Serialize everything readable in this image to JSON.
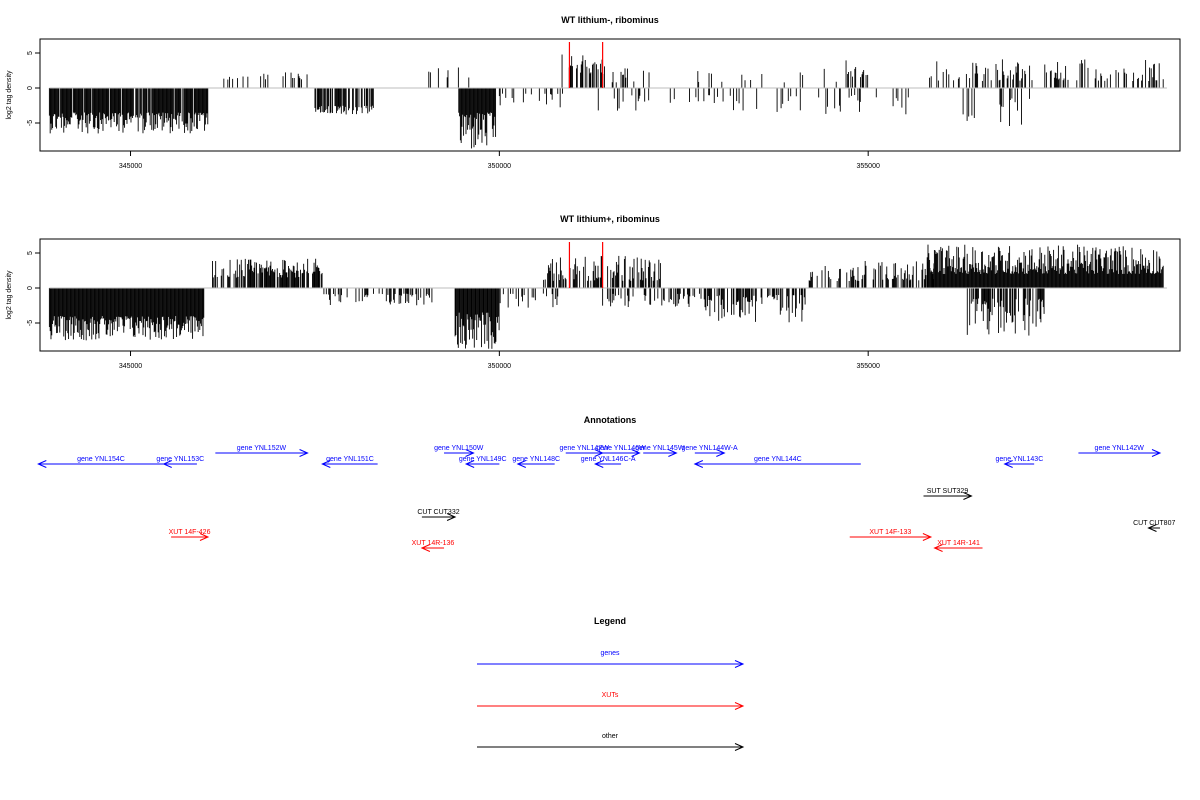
{
  "colors": {
    "gene": "#0000ff",
    "xut": "#ff0000",
    "other": "#000000",
    "marker": "#ff0000",
    "baseline": "#bebebe"
  },
  "chart_data": [
    {
      "type": "bar",
      "title": "WT lithium-, ribominus",
      "ylabel": "log2 tag density",
      "xlim": [
        343800,
        359200
      ],
      "ylim": [
        -9,
        7
      ],
      "x_ticks": [
        345000,
        350000,
        355000
      ],
      "x_tick_labels": [
        "345000",
        "350000",
        "355000"
      ],
      "y_ticks": [
        -5,
        0,
        5
      ],
      "y_tick_labels": [
        "-5",
        "0",
        "5"
      ],
      "marker_x": [
        350950,
        351400
      ],
      "segments": [
        {
          "from": 343900,
          "to": 346050,
          "sign": -1,
          "min": 3.5,
          "max": 6.5,
          "density": 0.9
        },
        {
          "from": 346200,
          "to": 347400,
          "sign": 1,
          "min": 1.2,
          "max": 2.3,
          "density": 0.15
        },
        {
          "from": 347500,
          "to": 348300,
          "sign": -1,
          "min": 2.5,
          "max": 3.8,
          "density": 0.7
        },
        {
          "from": 349000,
          "to": 349600,
          "sign": 1,
          "min": 1.5,
          "max": 3.0,
          "density": 0.15
        },
        {
          "from": 349450,
          "to": 349950,
          "sign": -1,
          "min": 3.5,
          "max": 9.2,
          "density": 1.0
        },
        {
          "from": 350000,
          "to": 350900,
          "sign": -1,
          "min": 0.8,
          "max": 3.2,
          "density": 0.2
        },
        {
          "from": 350850,
          "to": 351450,
          "sign": 1,
          "min": 2.0,
          "max": 4.8,
          "density": 0.55
        },
        {
          "from": 351200,
          "to": 353500,
          "sign": -1,
          "min": 1.0,
          "max": 3.5,
          "density": 0.12
        },
        {
          "from": 351400,
          "to": 354600,
          "sign": 1,
          "min": 0.8,
          "max": 3.0,
          "density": 0.08
        },
        {
          "from": 353700,
          "to": 355600,
          "sign": -1,
          "min": 1.0,
          "max": 4.0,
          "density": 0.12
        },
        {
          "from": 354700,
          "to": 355000,
          "sign": 1,
          "min": 1.5,
          "max": 4.0,
          "density": 0.3
        },
        {
          "from": 355800,
          "to": 359000,
          "sign": 1,
          "min": 1.0,
          "max": 4.2,
          "density": 0.35
        },
        {
          "from": 356200,
          "to": 357300,
          "sign": -1,
          "min": 1.5,
          "max": 5.5,
          "density": 0.12
        }
      ]
    },
    {
      "type": "bar",
      "title": "WT lithium+, ribominus",
      "ylabel": "log2 tag density",
      "xlim": [
        343800,
        359200
      ],
      "ylim": [
        -9,
        7
      ],
      "x_ticks": [
        345000,
        350000,
        355000
      ],
      "x_tick_labels": [
        "345000",
        "350000",
        "355000"
      ],
      "y_ticks": [
        -5,
        0,
        5
      ],
      "y_tick_labels": [
        "-5",
        "0",
        "5"
      ],
      "marker_x": [
        350950,
        351400
      ],
      "segments": [
        {
          "from": 343900,
          "to": 346000,
          "sign": -1,
          "min": 4.0,
          "max": 7.5,
          "density": 1.0
        },
        {
          "from": 346100,
          "to": 347600,
          "sign": 1,
          "min": 1.5,
          "max": 4.2,
          "density": 0.7
        },
        {
          "from": 347600,
          "to": 349100,
          "sign": -1,
          "min": 0.8,
          "max": 2.5,
          "density": 0.35
        },
        {
          "from": 349400,
          "to": 350000,
          "sign": -1,
          "min": 3.5,
          "max": 9.0,
          "density": 1.0
        },
        {
          "from": 350000,
          "to": 350900,
          "sign": -1,
          "min": 0.8,
          "max": 3.0,
          "density": 0.3
        },
        {
          "from": 350600,
          "to": 352200,
          "sign": 1,
          "min": 1.0,
          "max": 4.6,
          "density": 0.55
        },
        {
          "from": 351400,
          "to": 352800,
          "sign": -1,
          "min": 0.8,
          "max": 2.8,
          "density": 0.35
        },
        {
          "from": 352800,
          "to": 354200,
          "sign": -1,
          "min": 1.0,
          "max": 5.0,
          "density": 0.5
        },
        {
          "from": 354200,
          "to": 355900,
          "sign": 1,
          "min": 1.0,
          "max": 4.0,
          "density": 0.45
        },
        {
          "from": 355800,
          "to": 359000,
          "sign": 1,
          "min": 2.0,
          "max": 6.2,
          "density": 1.0
        },
        {
          "from": 356300,
          "to": 357400,
          "sign": -1,
          "min": 1.5,
          "max": 6.8,
          "density": 0.6
        }
      ]
    }
  ],
  "annotations": {
    "title": "Annotations",
    "features": [
      {
        "label": "gene YNL154C",
        "kind": "gene",
        "strand": "-",
        "start": 343750,
        "end": 345450,
        "row": 1
      },
      {
        "label": "gene YNL153C",
        "kind": "gene",
        "strand": "-",
        "start": 345450,
        "end": 345900,
        "row": 1
      },
      {
        "label": "gene YNL152W",
        "kind": "gene",
        "strand": "+",
        "start": 346150,
        "end": 347400,
        "row": 0
      },
      {
        "label": "gene YNL151C",
        "kind": "gene",
        "strand": "-",
        "start": 347600,
        "end": 348350,
        "row": 1
      },
      {
        "label": "gene YNL150W",
        "kind": "gene",
        "strand": "+",
        "start": 349250,
        "end": 349650,
        "row": 0
      },
      {
        "label": "gene YNL149C",
        "kind": "gene",
        "strand": "-",
        "start": 349550,
        "end": 350000,
        "row": 1
      },
      {
        "label": "gene YNL148C",
        "kind": "gene",
        "strand": "-",
        "start": 350250,
        "end": 350750,
        "row": 1
      },
      {
        "label": "gene YNL147W",
        "kind": "gene",
        "strand": "+",
        "start": 350900,
        "end": 351400,
        "row": 0
      },
      {
        "label": "gene YNL146C-A",
        "kind": "gene",
        "strand": "-",
        "start": 351300,
        "end": 351650,
        "row": 1
      },
      {
        "label": "gene YNL146W",
        "kind": "gene",
        "strand": "+",
        "start": 351400,
        "end": 351900,
        "row": 0
      },
      {
        "label": "gene YNL145W",
        "kind": "gene",
        "strand": "+",
        "start": 351950,
        "end": 352400,
        "row": 0
      },
      {
        "label": "gene YNL144W-A",
        "kind": "gene",
        "strand": "+",
        "start": 352650,
        "end": 353050,
        "row": 0
      },
      {
        "label": "gene YNL144C",
        "kind": "gene",
        "strand": "-",
        "start": 352650,
        "end": 354900,
        "row": 1
      },
      {
        "label": "gene YNL143C",
        "kind": "gene",
        "strand": "-",
        "start": 356850,
        "end": 357250,
        "row": 1
      },
      {
        "label": "gene YNL142W",
        "kind": "gene",
        "strand": "+",
        "start": 357850,
        "end": 359300,
        "row": 0
      },
      {
        "label": "SUT SUT329",
        "kind": "other",
        "strand": "+",
        "start": 355750,
        "end": 356400,
        "row": 3
      },
      {
        "label": "CUT CUT332",
        "kind": "other",
        "strand": "+",
        "start": 348950,
        "end": 349400,
        "row": 4
      },
      {
        "label": "CUT CUT807",
        "kind": "other",
        "strand": "-",
        "start": 358800,
        "end": 359300,
        "row": 5
      },
      {
        "label": "XUT 14F-426",
        "kind": "xut",
        "strand": "+",
        "start": 345550,
        "end": 346050,
        "row": 6
      },
      {
        "label": "XUT 14R-136",
        "kind": "xut",
        "strand": "-",
        "start": 348950,
        "end": 349250,
        "row": 7
      },
      {
        "label": "XUT 14F-133",
        "kind": "xut",
        "strand": "+",
        "start": 354750,
        "end": 355850,
        "row": 6
      },
      {
        "label": "XUT 14R-141",
        "kind": "xut",
        "strand": "-",
        "start": 355900,
        "end": 356550,
        "row": 7
      }
    ]
  },
  "legend": {
    "title": "Legend",
    "items": [
      {
        "label": "genes",
        "kind": "gene"
      },
      {
        "label": "XUTs",
        "kind": "xut"
      },
      {
        "label": "other",
        "kind": "other"
      }
    ]
  }
}
